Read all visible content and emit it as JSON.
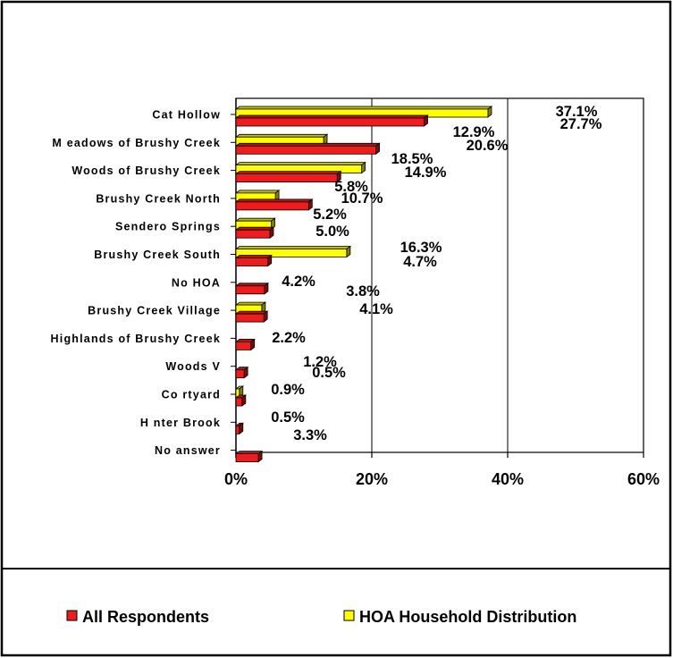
{
  "chart_data": {
    "type": "bar",
    "orientation": "horizontal",
    "categories": [
      "Cat Hollow",
      "M eadows of Brushy Creek",
      "Woods of Brushy Creek",
      "Brushy Creek North",
      "Sendero Springs",
      "Brushy Creek South",
      "No HOA",
      "Brushy Creek Village",
      "Highlands of Brushy Creek",
      "Woods V",
      "Co  rtyard",
      "H  nter Brook",
      "No answer"
    ],
    "series": [
      {
        "name": "All Respondents",
        "color": "#ee1c1c",
        "values": [
          27.7,
          20.6,
          14.9,
          10.7,
          5.0,
          4.7,
          4.2,
          4.1,
          2.2,
          1.2,
          0.9,
          0.5,
          3.3
        ],
        "labels": [
          "27.7%",
          "20.6%",
          "14.9%",
          "10.7%",
          "5.0%",
          "4.7%",
          "4.2%",
          "4.1%",
          "2.2%",
          "1.2%",
          "0.9%",
          "0.5%",
          "3.3%"
        ]
      },
      {
        "name": "HOA Household Distribution",
        "color": "#ffff00",
        "values": [
          37.1,
          12.9,
          18.5,
          5.8,
          5.2,
          16.3,
          null,
          3.8,
          null,
          null,
          0.5,
          null,
          null
        ],
        "labels": [
          "37.1%",
          "12.9%",
          "18.5%",
          "5.8%",
          "5.2%",
          "16.3%",
          "",
          "3.8%",
          "",
          "",
          "0.5%",
          "",
          ""
        ]
      }
    ],
    "x_ticks": [
      "0%",
      "20%",
      "40%",
      "60%"
    ],
    "xlim": [
      0,
      60
    ],
    "grid": "vertical major gridlines",
    "legend_position": "bottom"
  }
}
